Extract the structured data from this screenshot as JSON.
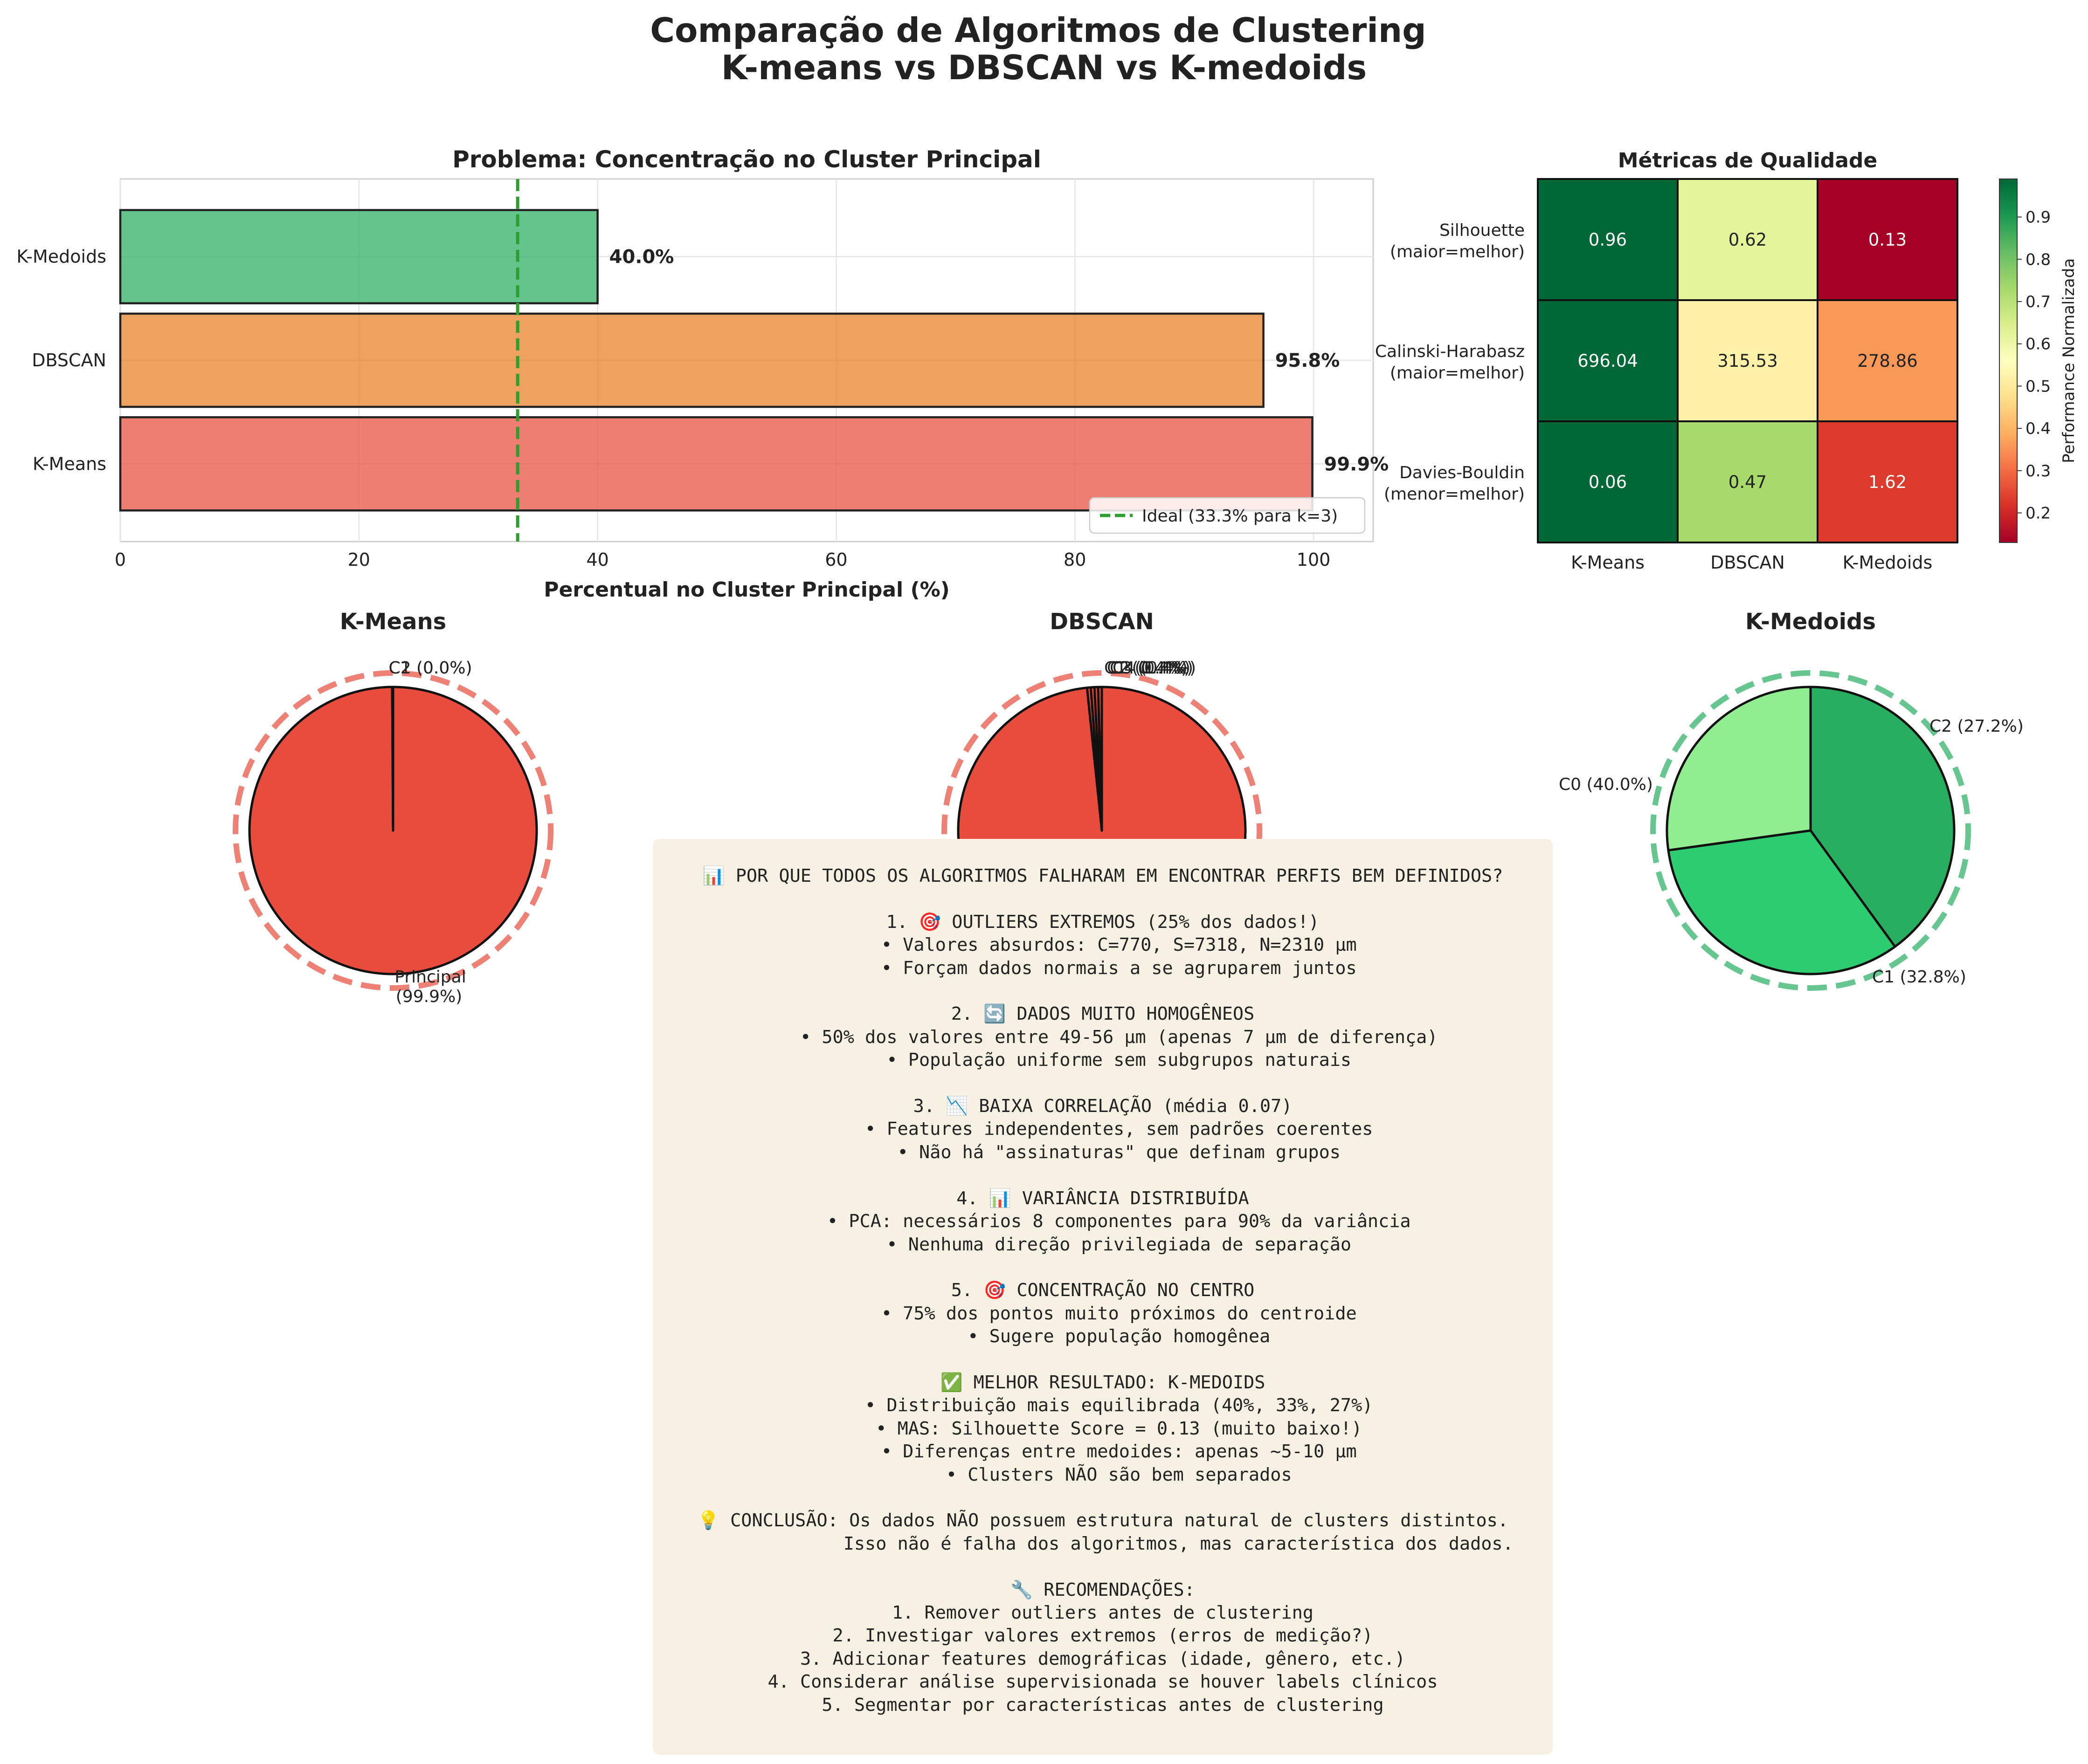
{
  "figure": {
    "title_line1": "Comparação de Algoritmos de Clustering",
    "title_line2": "K-means vs DBSCAN vs K-medoids"
  },
  "colors": {
    "kmeans": "#e74c3c",
    "dbscan": "#e67e22",
    "kmedoids": "#27ae60",
    "ideal_line": "#2ca02c",
    "pie_red": "#e74c3c",
    "medoid_greens": [
      "#27ae60",
      "#2ecc71",
      "#90ee90"
    ],
    "notes_bg": "#f7f1e3"
  },
  "chart_data": [
    {
      "type": "bar",
      "orientation": "horizontal",
      "title": "Problema: Concentração no Cluster Principal",
      "xlabel": "Percentual no Cluster Principal (%)",
      "categories": [
        "K-Means",
        "DBSCAN",
        "K-Medoids"
      ],
      "values": [
        99.9,
        95.8,
        40.0
      ],
      "value_labels": [
        "99.9%",
        "95.8%",
        "40.0%"
      ],
      "xlim": [
        0,
        105
      ],
      "xticks": [
        0,
        20,
        40,
        60,
        80,
        100
      ],
      "reference_line": {
        "value": 33.3,
        "label": "Ideal (33.3% para k=3)"
      },
      "legend": "bottom-right",
      "grid": true
    },
    {
      "type": "heatmap",
      "title": "Métricas de Qualidade",
      "columns": [
        "K-Means",
        "DBSCAN",
        "K-Medoids"
      ],
      "rows": [
        {
          "line1": "Silhouette",
          "line2": "(maior=melhor)"
        },
        {
          "line1": "Calinski-Harabasz",
          "line2": "(maior=melhor)"
        },
        {
          "line1": "Davies-Bouldin",
          "line2": "(menor=melhor)"
        }
      ],
      "values": [
        [
          0.96,
          0.62,
          0.13
        ],
        [
          696.04,
          315.53,
          278.86
        ],
        [
          0.06,
          0.47,
          1.62
        ]
      ],
      "cell_labels": [
        [
          "0.96",
          "0.62",
          "0.13"
        ],
        [
          "696.04",
          "315.53",
          "278.86"
        ],
        [
          "0.06",
          "0.47",
          "1.62"
        ]
      ],
      "normalized": [
        [
          0.99,
          0.62,
          0.13
        ],
        [
          0.99,
          0.52,
          0.36
        ],
        [
          0.99,
          0.73,
          0.23
        ]
      ],
      "colormap": "RdYlGn",
      "colorbar_label": "Performance Normalizada",
      "colorbar_range": [
        0.13,
        0.99
      ],
      "colorbar_ticks": [
        "0.2",
        "0.3",
        "0.4",
        "0.5",
        "0.6",
        "0.7",
        "0.8",
        "0.9"
      ]
    },
    {
      "type": "pie",
      "title": "K-Means",
      "slices": [
        {
          "label": "Principal (99.9%)",
          "value": 99.9
        },
        {
          "label": "C1 (0.0%)",
          "value": 0.05
        },
        {
          "label": "C2 (0.0%)",
          "value": 0.05
        }
      ],
      "labels_display": [
        "Principal",
        "(99.9%)",
        "C1 (0.0%)",
        "C2 (0.0%)"
      ]
    },
    {
      "type": "pie",
      "title": "DBSCAN",
      "slices": [
        {
          "label": "Principal (95.8%)",
          "value": 95.8
        },
        {
          "label": "C1 (0.4%)",
          "value": 0.4
        },
        {
          "label": "C2 (0.4%)",
          "value": 0.4
        },
        {
          "label": "C3 (0.4%)",
          "value": 0.4
        },
        {
          "label": "C4 (0.4%)",
          "value": 0.4
        }
      ],
      "labels_display": [
        "Principal",
        "(95.8%)",
        "C1 (0.4%)",
        "C2 (0.4%)",
        "C3 (0.4%)",
        "C4 (0.4%)"
      ]
    },
    {
      "type": "pie",
      "title": "K-Medoids",
      "slices": [
        {
          "label": "C0 (40.0%)",
          "value": 40.0
        },
        {
          "label": "C1 (32.8%)",
          "value": 32.8
        },
        {
          "label": "C2 (27.2%)",
          "value": 27.2
        }
      ]
    }
  ],
  "notes": {
    "text": "📊 POR QUE TODOS OS ALGORITMOS FALHARAM EM ENCONTRAR PERFIS BEM DEFINIDOS?\n\n1. 🎯 OUTLIERS EXTREMOS (25% dos dados!)\n   • Valores absurdos: C=770, S=7318, N=2310 μm\n   • Forçam dados normais a se agruparem juntos\n\n2. 🔄 DADOS MUITO HOMOGÊNEOS\n   • 50% dos valores entre 49-56 μm (apenas 7 μm de diferença)\n   • População uniforme sem subgrupos naturais\n\n3. 📉 BAIXA CORRELAÇÃO (média 0.07)\n   • Features independentes, sem padrões coerentes\n   • Não há \"assinaturas\" que definam grupos\n\n4. 📊 VARIÂNCIA DISTRIBUÍDA\n   • PCA: necessários 8 componentes para 90% da variância\n   • Nenhuma direção privilegiada de separação\n\n5. 🎯 CONCENTRAÇÃO NO CENTRO\n   • 75% dos pontos muito próximos do centroide\n   • Sugere população homogênea\n\n✅ MELHOR RESULTADO: K-MEDOIDS\n   • Distribuição mais equilibrada (40%, 33%, 27%)\n   • MAS: Silhouette Score = 0.13 (muito baixo!)\n   • Diferenças entre medoides: apenas ~5-10 μm\n   • Clusters NÃO são bem separados\n\n💡 CONCLUSÃO: Os dados NÃO possuem estrutura natural de clusters distintos.\n              Isso não é falha dos algoritmos, mas característica dos dados.\n\n🔧 RECOMENDAÇÕES:\n1. Remover outliers antes de clustering\n2. Investigar valores extremos (erros de medição?)\n3. Adicionar features demográficas (idade, gênero, etc.)\n4. Considerar análise supervisionada se houver labels clínicos\n5. Segmentar por características antes de clustering"
  }
}
